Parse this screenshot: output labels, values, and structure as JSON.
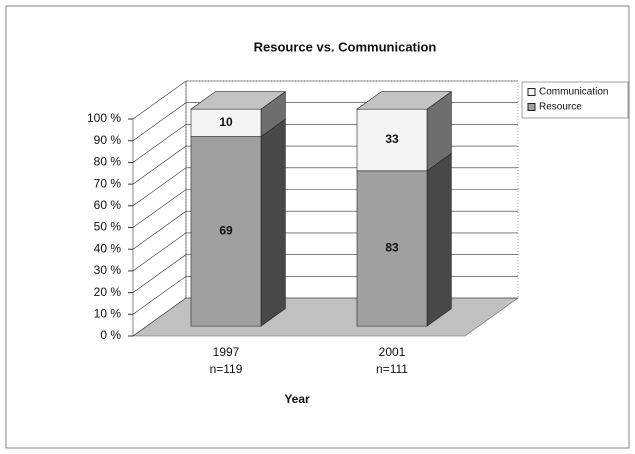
{
  "chart_data": {
    "type": "bar",
    "stacking": "percent",
    "title": "Resource vs. Communication",
    "x_label": "Year",
    "categories": [
      "1997",
      "2001"
    ],
    "category_sublabels": [
      "n=119",
      "n=111"
    ],
    "series": [
      {
        "name": "Communication",
        "color": "#f4f4f4",
        "values": [
          10,
          33
        ]
      },
      {
        "name": "Resource",
        "color": "#a0a0a0",
        "values": [
          69,
          83
        ]
      }
    ],
    "ylim": [
      0,
      100
    ],
    "yticks": [
      {
        "value": 0,
        "label": "0 %"
      },
      {
        "value": 10,
        "label": "10 %"
      },
      {
        "value": 20,
        "label": "20 %"
      },
      {
        "value": 30,
        "label": "30 %"
      },
      {
        "value": 40,
        "label": "40 %"
      },
      {
        "value": 50,
        "label": "50 %"
      },
      {
        "value": 60,
        "label": "60 %"
      },
      {
        "value": 70,
        "label": "70 %"
      },
      {
        "value": 80,
        "label": "80 %"
      },
      {
        "value": 90,
        "label": "90 %"
      },
      {
        "value": 100,
        "label": "100 %"
      }
    ],
    "grid": true,
    "legend": "right"
  }
}
